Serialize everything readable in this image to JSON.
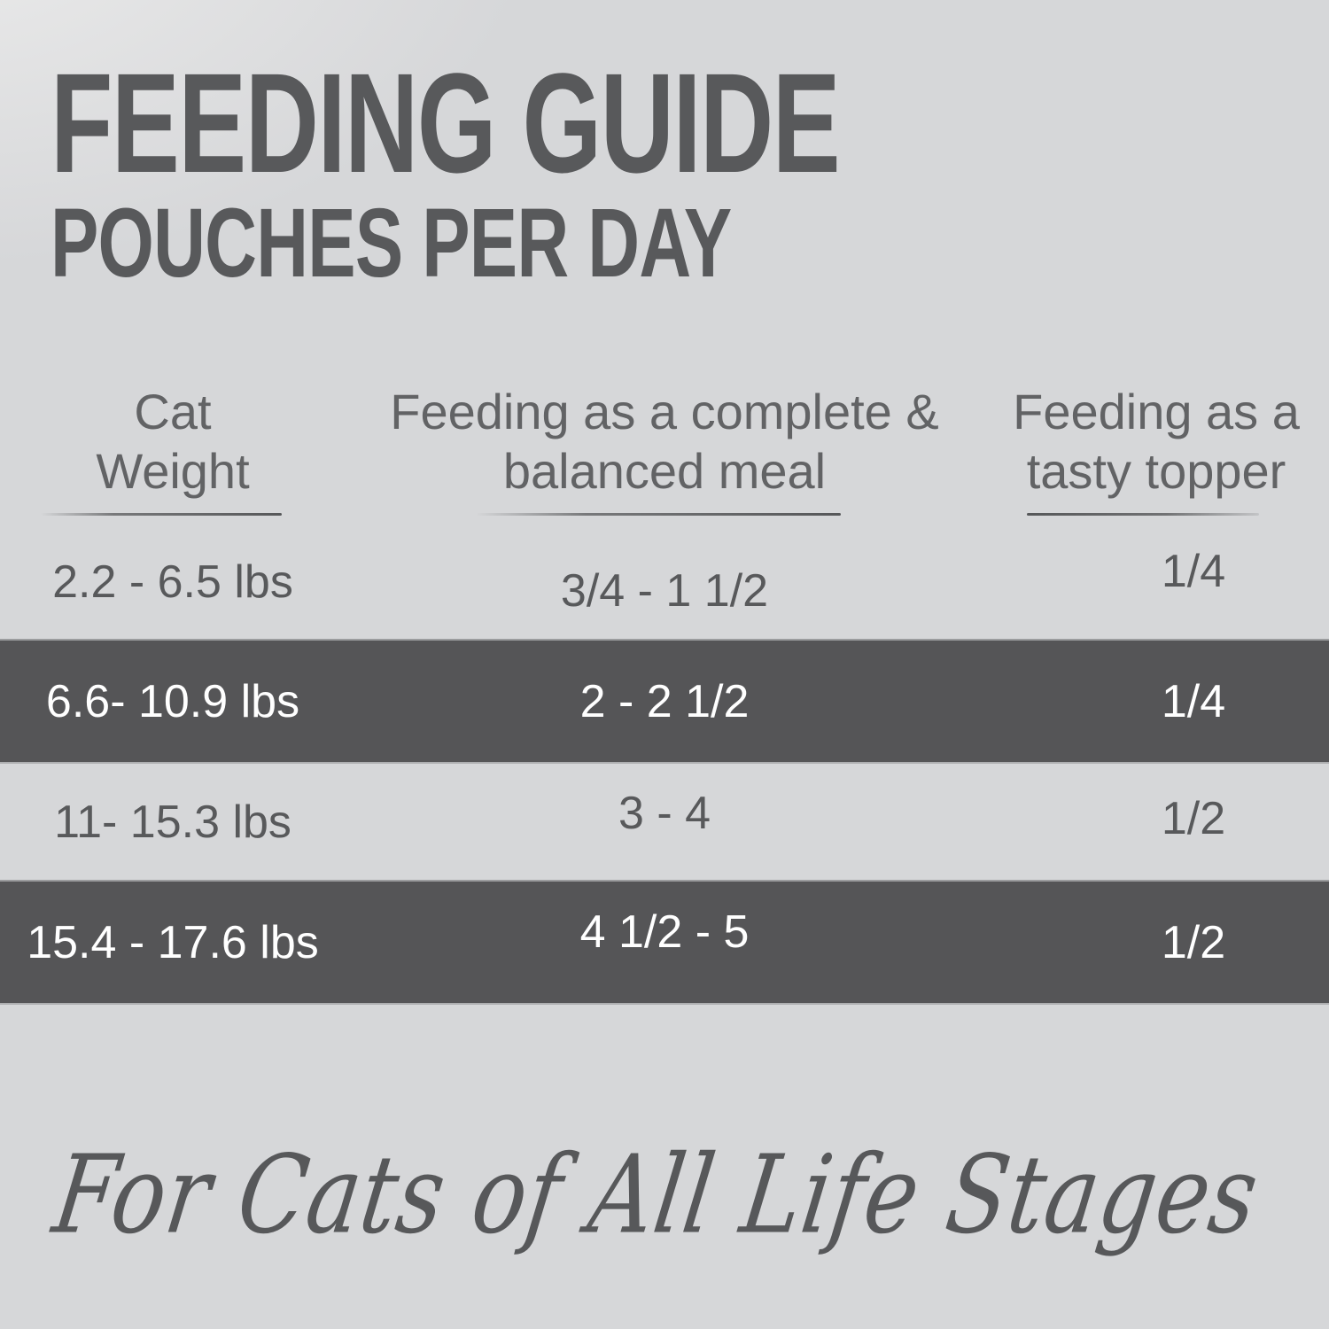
{
  "header": {
    "title": "FEEDING GUIDE",
    "subtitle": "POUCHES PER DAY"
  },
  "table": {
    "columns": [
      {
        "line1": "Cat",
        "line2": "Weight"
      },
      {
        "line1": "Feeding as a complete &",
        "line2": "balanced meal"
      },
      {
        "line1": "Feeding as a",
        "line2": "tasty topper"
      }
    ],
    "rows": [
      {
        "weight": "2.2 - 6.5 lbs",
        "meal": "3/4 - 1 1/2",
        "topper": "1/4",
        "highlighted": false
      },
      {
        "weight": "6.6- 10.9 lbs",
        "meal": "2 - 2 1/2",
        "topper": "1/4",
        "highlighted": true
      },
      {
        "weight": "11- 15.3 lbs",
        "meal": "3 - 4",
        "topper": "1/2",
        "highlighted": false
      },
      {
        "weight": "15.4 - 17.6 lbs",
        "meal": "4 1/2 - 5",
        "topper": "1/2",
        "highlighted": true
      }
    ]
  },
  "footer": {
    "tagline": "For Cats of All Life Stages"
  },
  "colors": {
    "background": "#d6d7d9",
    "text_dark": "#58595b",
    "header_text": "#626365",
    "highlight_row_bg": "#555557",
    "highlight_row_text": "#ffffff"
  }
}
